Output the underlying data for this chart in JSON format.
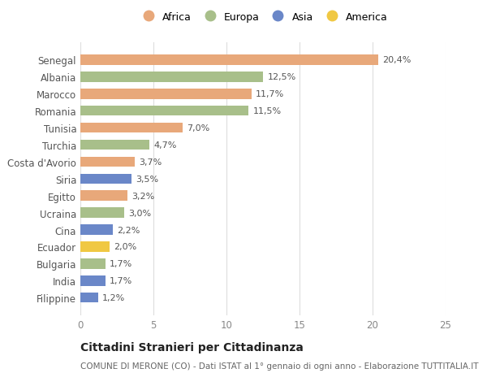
{
  "categories": [
    "Filippine",
    "India",
    "Bulgaria",
    "Ecuador",
    "Cina",
    "Ucraina",
    "Egitto",
    "Siria",
    "Costa d'Avorio",
    "Turchia",
    "Tunisia",
    "Romania",
    "Marocco",
    "Albania",
    "Senegal"
  ],
  "values": [
    1.2,
    1.7,
    1.7,
    2.0,
    2.2,
    3.0,
    3.2,
    3.5,
    3.7,
    4.7,
    7.0,
    11.5,
    11.7,
    12.5,
    20.4
  ],
  "labels": [
    "1,2%",
    "1,7%",
    "1,7%",
    "2,0%",
    "2,2%",
    "3,0%",
    "3,2%",
    "3,5%",
    "3,7%",
    "4,7%",
    "7,0%",
    "11,5%",
    "11,7%",
    "12,5%",
    "20,4%"
  ],
  "colors": [
    "#6a87c8",
    "#6a87c8",
    "#a8bf8a",
    "#f0c843",
    "#6a87c8",
    "#a8bf8a",
    "#e8a87a",
    "#6a87c8",
    "#e8a87a",
    "#a8bf8a",
    "#e8a87a",
    "#a8bf8a",
    "#e8a87a",
    "#a8bf8a",
    "#e8a87a"
  ],
  "continents": [
    "Asia",
    "Asia",
    "Europa",
    "America",
    "Asia",
    "Europa",
    "Africa",
    "Asia",
    "Africa",
    "Europa",
    "Africa",
    "Europa",
    "Africa",
    "Europa",
    "Africa"
  ],
  "legend_labels": [
    "Africa",
    "Europa",
    "Asia",
    "America"
  ],
  "legend_colors": [
    "#e8a87a",
    "#a8bf8a",
    "#6a87c8",
    "#f0c843"
  ],
  "title": "Cittadini Stranieri per Cittadinanza",
  "subtitle": "COMUNE DI MERONE (CO) - Dati ISTAT al 1° gennaio di ogni anno - Elaborazione TUTTITALIA.IT",
  "xlim": [
    0,
    25
  ],
  "xticks": [
    0,
    5,
    10,
    15,
    20,
    25
  ],
  "bg_color": "#ffffff",
  "bar_height": 0.6,
  "grid_color": "#dddddd",
  "title_fontsize": 10,
  "subtitle_fontsize": 7.5,
  "tick_fontsize": 8.5,
  "label_fontsize": 8.0
}
